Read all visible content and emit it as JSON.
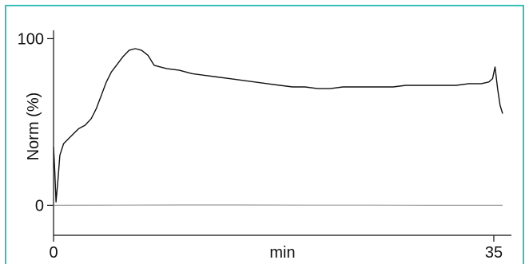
{
  "chart_data": {
    "type": "line",
    "xlabel": "min",
    "ylabel": "Norm (%)",
    "x_ticks": [
      {
        "value": 0,
        "label": "0"
      },
      {
        "value": 35,
        "label": "35"
      }
    ],
    "y_ticks": [
      {
        "value": 0,
        "label": "0"
      },
      {
        "value": 100,
        "label": "100"
      }
    ],
    "xlim": [
      0,
      36.4
    ],
    "ylim": [
      -18,
      105
    ],
    "grid": false,
    "legend": "none",
    "frame_color": "#36c0b6",
    "series": [
      {
        "color": "#111111",
        "x": [
          0.0,
          0.1,
          0.2,
          0.35,
          0.5,
          0.8,
          1.2,
          1.6,
          2.0,
          2.5,
          3.0,
          3.4,
          3.8,
          4.2,
          4.6,
          5.0,
          5.5,
          6.0,
          6.5,
          7.0,
          7.5,
          8.0,
          9.0,
          10.0,
          11.0,
          12.0,
          13.0,
          14.0,
          15.0,
          16.0,
          17.0,
          18.0,
          19.0,
          20.0,
          21.0,
          22.0,
          23.0,
          24.0,
          25.0,
          26.0,
          27.0,
          28.0,
          29.0,
          30.0,
          31.0,
          32.0,
          33.0,
          34.0,
          34.6,
          34.9,
          35.1,
          35.3,
          35.5,
          35.7
        ],
        "values": [
          35,
          20,
          2,
          15,
          30,
          37,
          40,
          43,
          46,
          48,
          52,
          58,
          66,
          74,
          80,
          84,
          89,
          93,
          94,
          93,
          90,
          84,
          82,
          81,
          79,
          78,
          77,
          76,
          75,
          74,
          73,
          72,
          71,
          71,
          70,
          70,
          71,
          71,
          71,
          71,
          71,
          72,
          72,
          72,
          72,
          72,
          73,
          73,
          74,
          76,
          83,
          70,
          60,
          55
        ]
      },
      {
        "color": "#9a9a9a",
        "x": [
          0.0,
          5.0,
          10.0,
          15.0,
          20.0,
          25.0,
          30.0,
          35.0,
          35.7
        ],
        "values": [
          0.0,
          0.1,
          0.2,
          0.2,
          0.1,
          0.1,
          0.0,
          0.0,
          0.0
        ]
      }
    ]
  }
}
